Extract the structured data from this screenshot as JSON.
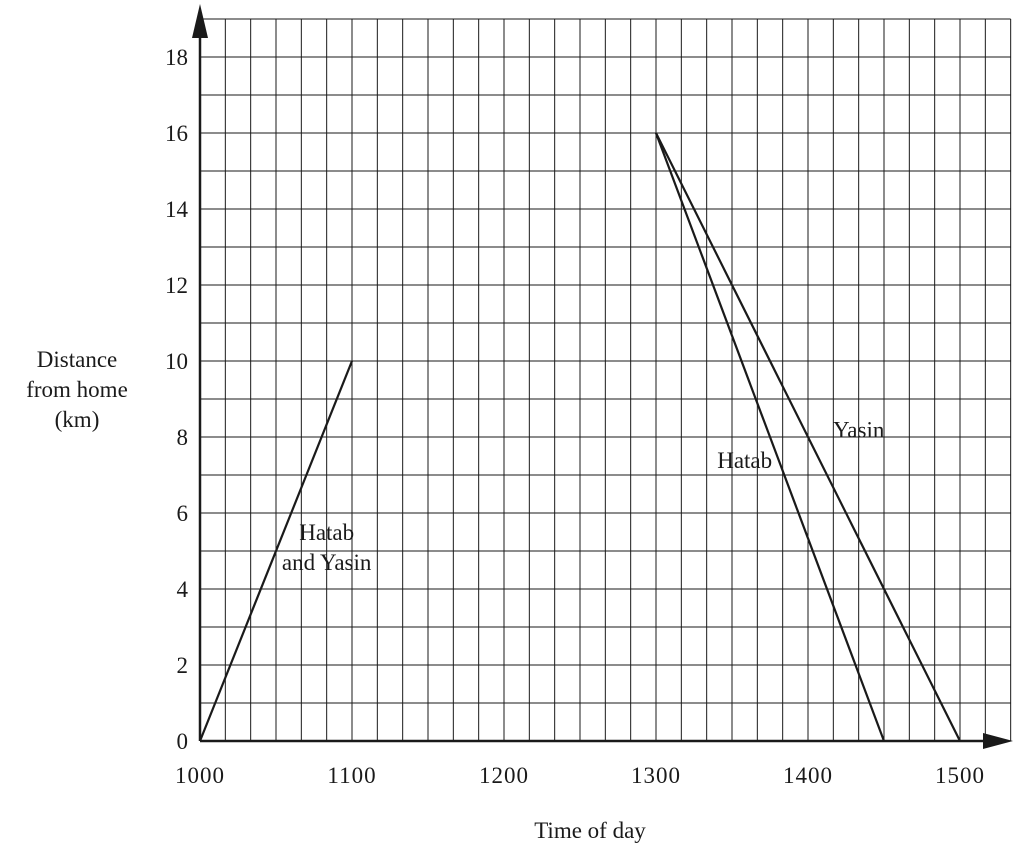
{
  "chart_data": {
    "type": "line",
    "title": "",
    "xlabel": "Time of day",
    "ylabel_lines": [
      "Distance",
      "from home",
      "(km)"
    ],
    "x_ticks": [
      {
        "value": 0,
        "label": "1000"
      },
      {
        "value": 1,
        "label": "1100"
      },
      {
        "value": 2,
        "label": "1200"
      },
      {
        "value": 3,
        "label": "1300"
      },
      {
        "value": 4,
        "label": "1400"
      },
      {
        "value": 5,
        "label": "1500"
      }
    ],
    "y_ticks": [
      "0",
      "2",
      "4",
      "6",
      "8",
      "10",
      "12",
      "14",
      "16",
      "18"
    ],
    "xlim": [
      "1000",
      "1520"
    ],
    "ylim": [
      0,
      19
    ],
    "grid": true,
    "series": [
      {
        "points": [
          {
            "x": "1000",
            "y": 0
          },
          {
            "x": "1100",
            "y": 10
          }
        ]
      },
      {
        "points": [
          {
            "x": "1300",
            "y": 16
          },
          {
            "x": "1430",
            "y": 0
          }
        ]
      },
      {
        "points": [
          {
            "x": "1300",
            "y": 16
          },
          {
            "x": "1500",
            "y": 0
          }
        ]
      }
    ],
    "annotations": [
      {
        "lines": [
          "Hatab",
          "and Yasin"
        ],
        "x": "1050",
        "y": 5.5
      },
      {
        "lines": [
          "Hatab"
        ],
        "x": "1335",
        "y": 7.4
      },
      {
        "lines": [
          "Yasin"
        ],
        "x": "1420",
        "y": 8.2
      }
    ]
  }
}
